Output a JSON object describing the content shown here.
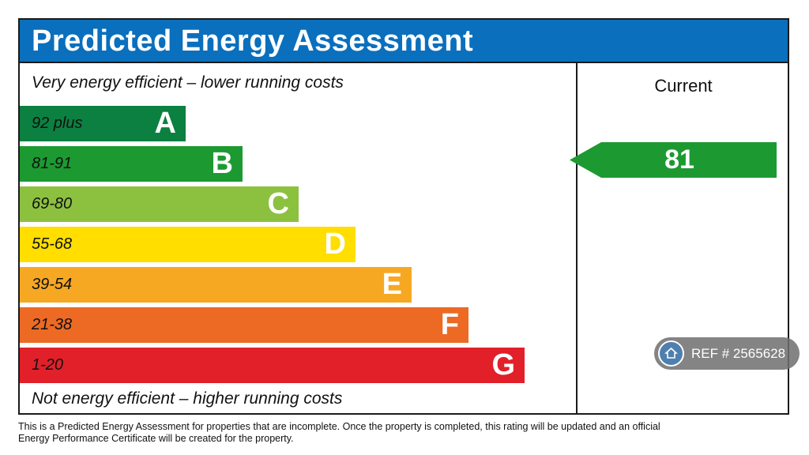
{
  "header": {
    "title": "Predicted Energy Assessment"
  },
  "captions": {
    "top": "Very energy efficient – lower running costs",
    "bottom": "Not energy efficient – higher running costs"
  },
  "current": {
    "label": "Current",
    "value": "81",
    "color": "#1c9a31"
  },
  "chart_data": {
    "type": "bar",
    "title": "Predicted Energy Assessment",
    "bands": [
      {
        "range": "92 plus",
        "letter": "A",
        "color": "#0c8040"
      },
      {
        "range": "81-91",
        "letter": "B",
        "color": "#1c9a31"
      },
      {
        "range": "69-80",
        "letter": "C",
        "color": "#8cc13f"
      },
      {
        "range": "55-68",
        "letter": "D",
        "color": "#ffde00"
      },
      {
        "range": "39-54",
        "letter": "E",
        "color": "#f7a823"
      },
      {
        "range": "21-38",
        "letter": "F",
        "color": "#ec6a24"
      },
      {
        "range": "1-20",
        "letter": "G",
        "color": "#e2202a"
      }
    ],
    "current_rating": 81,
    "current_band": "B"
  },
  "watermark": {
    "text": "REF # 2565628",
    "icon": "house-icon"
  },
  "footnote": "This is a Predicted Energy Assessment for properties that are incomplete. Once the property is completed, this rating will be updated and an official Energy Performance Certificate will be created for the property."
}
